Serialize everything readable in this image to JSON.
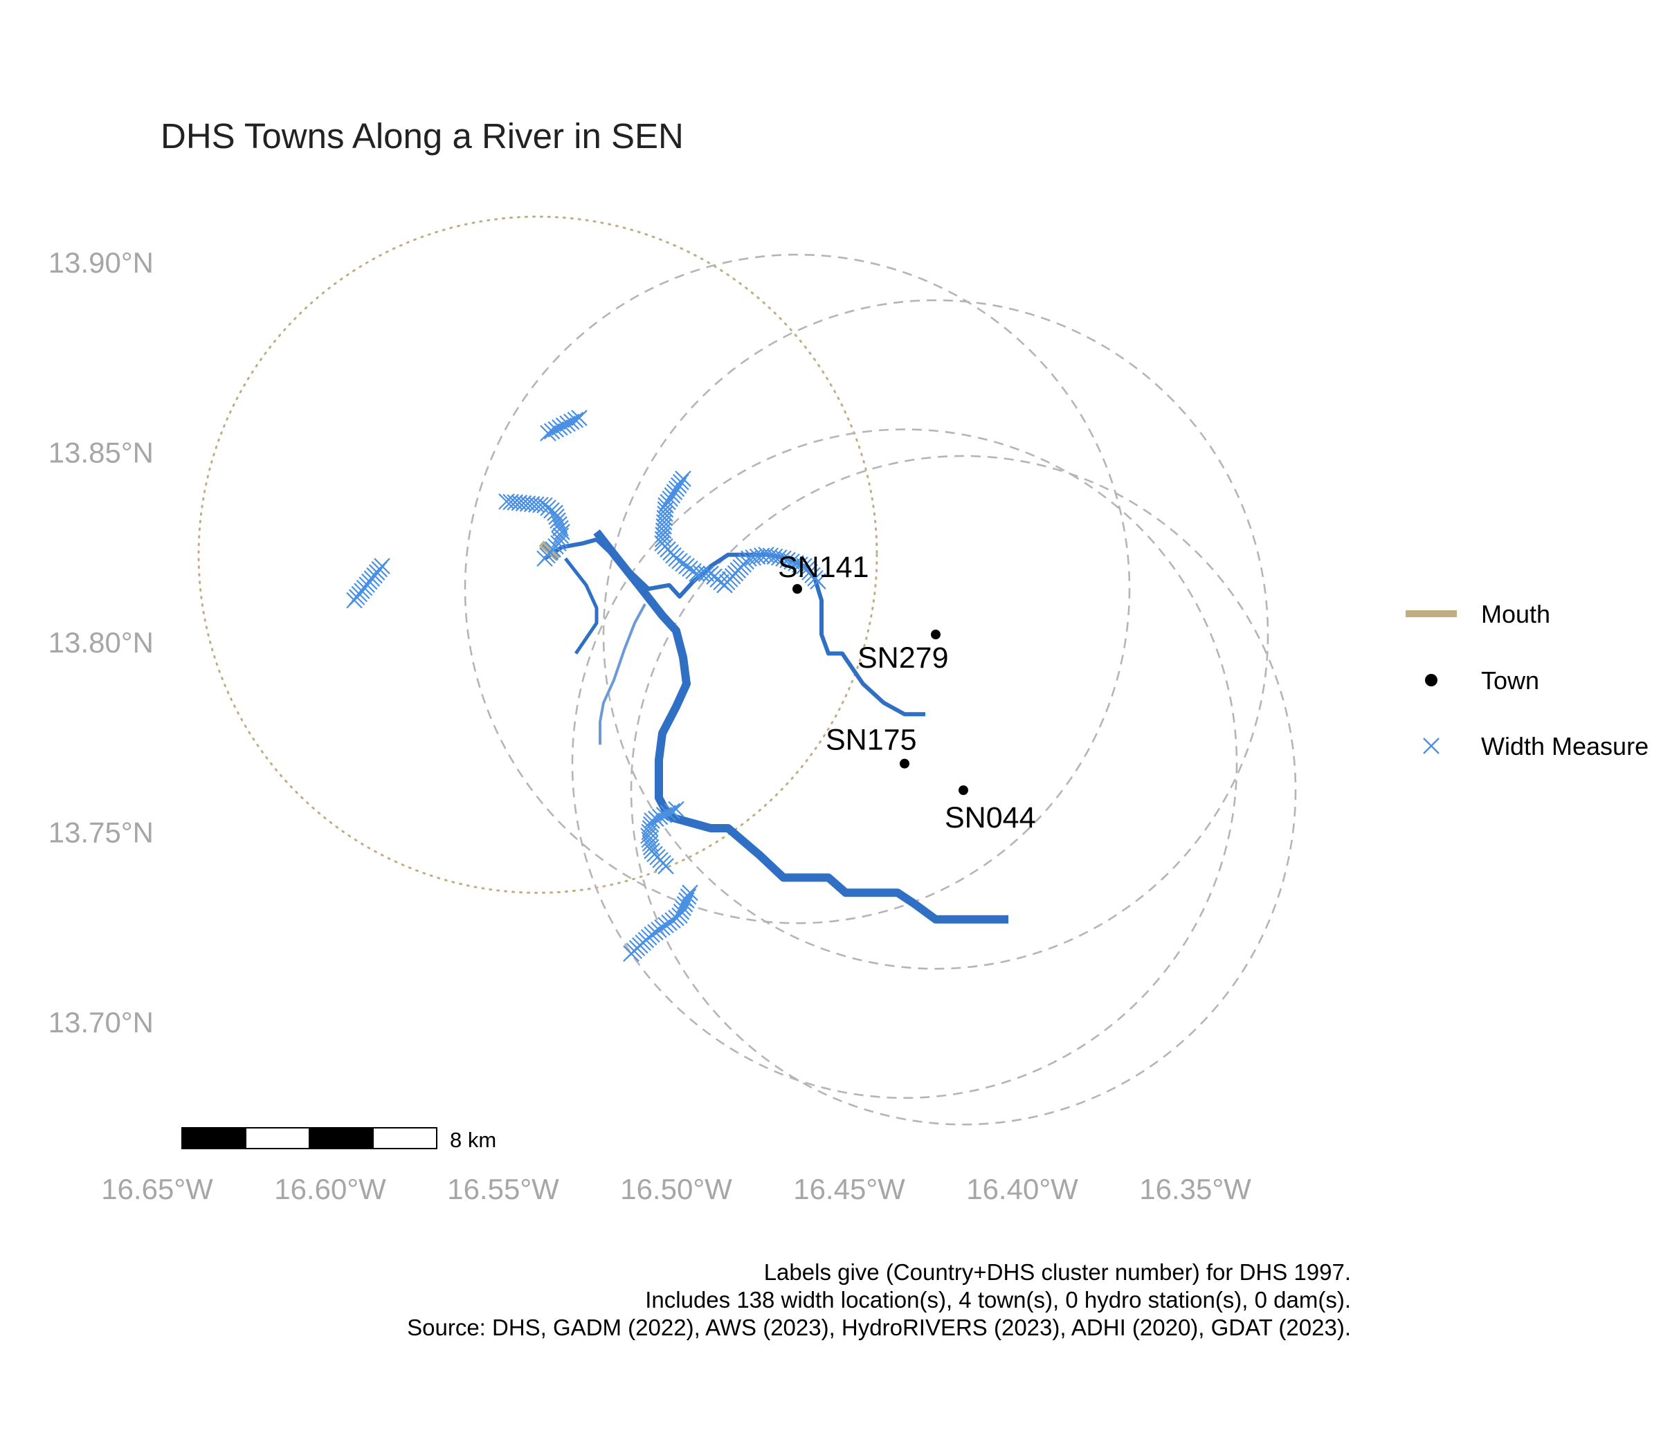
{
  "title": "DHS Towns Along a River in SEN",
  "colors": {
    "river": "#2f6fc4",
    "river_light": "#6b9bd6",
    "width_measure": "#4a90e2",
    "mouth": "#bfae82",
    "buffer": "#b5b5b5",
    "mouth_buffer": "#bfae82",
    "town": "#000000"
  },
  "chart_data": {
    "type": "map",
    "xlim": [
      -16.65,
      -16.33
    ],
    "ylim": [
      13.68,
      13.92
    ],
    "x_ticks": [
      {
        "value": -16.65,
        "label": "16.65°W"
      },
      {
        "value": -16.6,
        "label": "16.60°W"
      },
      {
        "value": -16.55,
        "label": "16.55°W"
      },
      {
        "value": -16.5,
        "label": "16.50°W"
      },
      {
        "value": -16.45,
        "label": "16.45°W"
      },
      {
        "value": -16.4,
        "label": "16.40°W"
      },
      {
        "value": -16.35,
        "label": "16.35°W"
      }
    ],
    "y_ticks": [
      {
        "value": 13.9,
        "label": "13.90°N"
      },
      {
        "value": 13.85,
        "label": "13.85°N"
      },
      {
        "value": 13.8,
        "label": "13.80°N"
      },
      {
        "value": 13.75,
        "label": "13.75°N"
      },
      {
        "value": 13.7,
        "label": "13.70°N"
      }
    ],
    "grid": false,
    "legend": {
      "placement": "right",
      "entries": [
        {
          "label": "Mouth",
          "symbol": "line",
          "color": "#bfae82"
        },
        {
          "label": "Town",
          "symbol": "dot",
          "color": "#000000"
        },
        {
          "label": "Width Measure",
          "symbol": "cross",
          "color": "#4a90e2"
        }
      ]
    },
    "towns": [
      {
        "label": "SN141",
        "lon": -16.465,
        "lat": 13.814
      },
      {
        "label": "SN279",
        "lon": -16.425,
        "lat": 13.802
      },
      {
        "label": "SN175",
        "lon": -16.434,
        "lat": 13.768
      },
      {
        "label": "SN044",
        "lon": -16.417,
        "lat": 13.761
      }
    ],
    "mouth": {
      "lon": [
        -16.539,
        -16.534
      ],
      "lat": [
        13.826,
        13.822
      ]
    },
    "mouth_buffer": {
      "center_lon": -16.54,
      "center_lat": 13.823,
      "radius_lon": 0.098,
      "radius_lat": 0.089
    },
    "town_buffers": [
      {
        "center_lon": -16.465,
        "center_lat": 13.814,
        "radius_lon": 0.096,
        "radius_lat": 0.088
      },
      {
        "center_lon": -16.425,
        "center_lat": 13.802,
        "radius_lon": 0.096,
        "radius_lat": 0.088
      },
      {
        "center_lon": -16.434,
        "center_lat": 13.768,
        "radius_lon": 0.096,
        "radius_lat": 0.088
      },
      {
        "center_lon": -16.417,
        "center_lat": 13.761,
        "radius_lon": 0.096,
        "radius_lat": 0.088
      }
    ],
    "rivers": [
      {
        "role": "main",
        "width": 12,
        "color": "#2f6fc4",
        "lon": [
          -16.523,
          -16.517,
          -16.51,
          -16.504,
          -16.5,
          -16.498,
          -16.497,
          -16.5,
          -16.504,
          -16.505,
          -16.505,
          -16.502,
          -16.49,
          -16.485,
          -16.476,
          -16.469,
          -16.461,
          -16.456,
          -16.451,
          -16.436,
          -16.431,
          -16.425,
          -16.404
        ],
        "lat": [
          13.829,
          13.822,
          13.814,
          13.807,
          13.803,
          13.796,
          13.789,
          13.783,
          13.776,
          13.769,
          13.759,
          13.754,
          13.751,
          13.751,
          13.744,
          13.738,
          13.738,
          13.738,
          13.734,
          13.734,
          13.731,
          13.727,
          13.727
        ]
      },
      {
        "role": "tributary",
        "width": 6,
        "color": "#2f6fc4",
        "lon": [
          -16.538,
          -16.533,
          -16.527,
          -16.523,
          -16.508,
          -16.502,
          -16.499,
          -16.495,
          -16.49,
          -16.485,
          -16.479,
          -16.474,
          -16.468,
          -16.463,
          -16.46,
          -16.458,
          -16.458,
          -16.456,
          -16.452,
          -16.446,
          -16.44,
          -16.434,
          -16.428
        ],
        "lat": [
          13.822,
          13.825,
          13.826,
          13.827,
          13.814,
          13.815,
          13.812,
          13.816,
          13.82,
          13.823,
          13.823,
          13.823,
          13.822,
          13.82,
          13.817,
          13.811,
          13.802,
          13.797,
          13.797,
          13.789,
          13.784,
          13.781,
          13.781
        ]
      },
      {
        "role": "branch",
        "width": 5,
        "color": "#2f6fc4",
        "lon": [
          -16.532,
          -16.526,
          -16.523,
          -16.523,
          -16.526,
          -16.529
        ],
        "lat": [
          13.822,
          13.815,
          13.809,
          13.805,
          13.801,
          13.797
        ]
      },
      {
        "role": "side-channel",
        "width": 4,
        "color": "#6b9bd6",
        "lon": [
          -16.509,
          -16.512,
          -16.515,
          -16.518,
          -16.521,
          -16.522,
          -16.522
        ],
        "lat": [
          13.81,
          13.805,
          13.798,
          13.79,
          13.784,
          13.779,
          13.773
        ]
      }
    ],
    "width_measures": [
      {
        "lon": [
          -16.537,
          -16.528
        ],
        "lat": [
          13.855,
          13.859
        ]
      },
      {
        "lon": [
          -16.593,
          -16.585
        ],
        "lat": [
          13.811,
          13.82
        ]
      },
      {
        "lon": [
          -16.549,
          -16.538,
          -16.535,
          -16.533,
          -16.534,
          -16.538
        ],
        "lat": [
          13.837,
          13.836,
          13.834,
          13.829,
          13.826,
          13.822
        ]
      },
      {
        "lon": [
          -16.498,
          -16.503,
          -16.504,
          -16.5,
          -16.494,
          -16.49,
          -16.486
        ],
        "lat": [
          13.843,
          13.836,
          13.826,
          13.822,
          13.818,
          13.818,
          13.815
        ]
      },
      {
        "lon": [
          -16.486,
          -16.479,
          -16.474,
          -16.469,
          -16.463,
          -16.459
        ],
        "lat": [
          13.815,
          13.822,
          13.823,
          13.822,
          13.82,
          13.816
        ]
      },
      {
        "lon": [
          -16.5,
          -16.507,
          -16.508,
          -16.507,
          -16.503
        ],
        "lat": [
          13.756,
          13.753,
          13.749,
          13.745,
          13.741
        ]
      },
      {
        "lon": [
          -16.496,
          -16.499,
          -16.507,
          -16.513
        ],
        "lat": [
          13.734,
          13.728,
          13.723,
          13.718
        ]
      }
    ]
  },
  "scale_bar": {
    "label": "8 km"
  },
  "caption": {
    "lines": [
      "Labels give (Country+DHS cluster number) for DHS 1997.",
      "Includes 138 width location(s), 4 town(s), 0 hydro station(s), 0 dam(s).",
      "Source: DHS, GADM (2022), AWS (2023), HydroRIVERS (2023), ADHI (2020), GDAT (2023)."
    ]
  }
}
